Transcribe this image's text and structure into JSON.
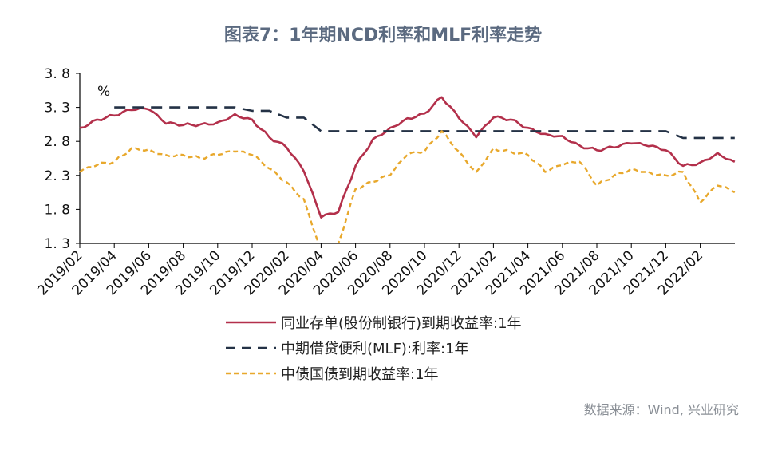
{
  "chart_data": {
    "type": "line",
    "title": "图表7：1年期NCD利率和MLF利率走势",
    "ylabel": "%",
    "xlabel": "",
    "ylim": [
      1.3,
      3.8
    ],
    "yticks": [
      "1.3",
      "1.8",
      "2.3",
      "2.8",
      "3.3",
      "3.8"
    ],
    "xtick_labels": [
      "2019/02",
      "2019/04",
      "2019/06",
      "2019/08",
      "2019/10",
      "2019/12",
      "2020/02",
      "2020/04",
      "2020/06",
      "2020/08",
      "2020/10",
      "2020/12",
      "2021/02",
      "2021/04",
      "2021/06",
      "2021/08",
      "2021/10",
      "2021/12",
      "2022/02"
    ],
    "x": [
      "2019/02",
      "2019/03",
      "2019/04",
      "2019/05",
      "2019/06",
      "2019/07",
      "2019/08",
      "2019/09",
      "2019/10",
      "2019/11",
      "2019/12",
      "2020/01",
      "2020/02",
      "2020/03",
      "2020/04",
      "2020/05",
      "2020/06",
      "2020/07",
      "2020/08",
      "2020/09",
      "2020/10",
      "2020/11",
      "2020/12",
      "2021/01",
      "2021/02",
      "2021/03",
      "2021/04",
      "2021/05",
      "2021/06",
      "2021/07",
      "2021/08",
      "2021/09",
      "2021/10",
      "2021/11",
      "2021/12",
      "2022/01",
      "2022/02",
      "2022/03",
      "2022/04"
    ],
    "grid": false,
    "legend_position": "bottom",
    "series": [
      {
        "name": "同业存单(股份制银行)到期收益率:1年",
        "style": "solid",
        "color": "#b3304b",
        "values": [
          3.0,
          3.12,
          3.18,
          3.26,
          3.27,
          3.06,
          3.04,
          3.05,
          3.08,
          3.2,
          3.12,
          2.86,
          2.71,
          2.36,
          1.68,
          1.76,
          2.44,
          2.83,
          3.0,
          3.14,
          3.21,
          3.45,
          3.14,
          2.86,
          3.15,
          3.12,
          3.0,
          2.91,
          2.88,
          2.74,
          2.67,
          2.71,
          2.77,
          2.73,
          2.67,
          2.44,
          2.49,
          2.63,
          2.5
        ]
      },
      {
        "name": "中期借贷便利(MLF):利率:1年",
        "style": "dashed",
        "color": "#243246",
        "values": [
          null,
          null,
          3.3,
          3.3,
          3.3,
          3.3,
          3.3,
          3.3,
          3.3,
          3.3,
          3.25,
          3.25,
          3.15,
          3.15,
          2.95,
          2.95,
          2.95,
          2.95,
          2.95,
          2.95,
          2.95,
          2.95,
          2.95,
          2.95,
          2.95,
          2.95,
          2.95,
          2.95,
          2.95,
          2.95,
          2.95,
          2.95,
          2.95,
          2.95,
          2.95,
          2.85,
          2.85,
          2.85,
          2.85
        ]
      },
      {
        "name": "中债国债到期收益率:1年",
        "style": "dotted-dash",
        "color": "#e8a82c",
        "values": [
          2.35,
          2.45,
          2.5,
          2.7,
          2.68,
          2.6,
          2.6,
          2.55,
          2.6,
          2.65,
          2.6,
          2.4,
          2.2,
          1.95,
          1.2,
          1.3,
          2.1,
          2.2,
          2.3,
          2.6,
          2.65,
          2.95,
          2.65,
          2.35,
          2.7,
          2.65,
          2.6,
          2.35,
          2.45,
          2.5,
          2.15,
          2.3,
          2.4,
          2.35,
          2.3,
          2.35,
          1.9,
          2.15,
          2.05
        ]
      }
    ]
  },
  "source": "数据来源：Wind, 兴业研究"
}
